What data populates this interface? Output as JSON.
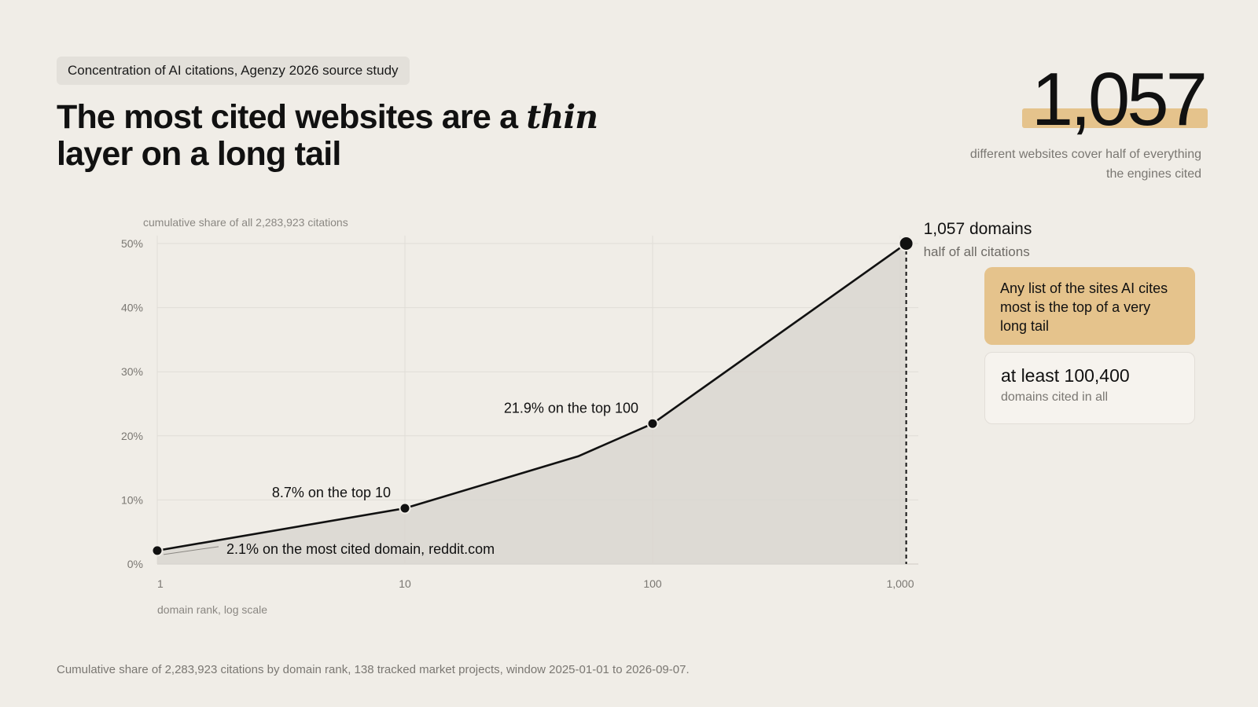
{
  "tag": "Concentration of AI citations, Agenzy 2026 source study",
  "headline": {
    "before": "The most cited websites are a ",
    "em": "thin",
    "after": " layer on a long tail"
  },
  "hero": {
    "number": "1,057",
    "subtitle_line1": "different websites cover half of everything",
    "subtitle_line2": "the engines cited"
  },
  "callout_accent": "Any list of the sites AI cites most is the top of a very long tail",
  "callout_plain": {
    "value": "at least 100,400",
    "label": "domains cited in all"
  },
  "footer": "Cumulative share of 2,283,923 citations by domain rank, 138 tracked market projects, window 2025-01-01 to 2026-09-07.",
  "colors": {
    "background": "#f0ede7",
    "accent": "#e5c38c",
    "line": "#111111",
    "area": "#d9d6d0"
  },
  "chart_data": {
    "type": "area",
    "title": "",
    "ylabel": "cumulative share of all 2,283,923 citations",
    "xlabel": "domain rank, log scale",
    "x_scale": "log",
    "xlim": [
      1,
      1000
    ],
    "ylim": [
      0,
      50
    ],
    "x_ticks": [
      1,
      10,
      100,
      1000
    ],
    "x_tick_labels": [
      "1",
      "10",
      "100",
      "1,000"
    ],
    "y_ticks": [
      0,
      10,
      20,
      30,
      40,
      50
    ],
    "y_tick_labels": [
      "0%",
      "10%",
      "20%",
      "30%",
      "40%",
      "50%"
    ],
    "grid": true,
    "series": [
      {
        "x": [
          1,
          10,
          50,
          100,
          1057
        ],
        "y": [
          2.1,
          8.7,
          16.8,
          21.9,
          50
        ]
      }
    ],
    "highlight_points": [
      {
        "x": 1,
        "y": 2.1,
        "label": "2.1% on the most cited domain, reddit.com"
      },
      {
        "x": 10,
        "y": 8.7,
        "label": "8.7% on the top 10"
      },
      {
        "x": 100,
        "y": 21.9,
        "label": "21.9% on the top 100"
      },
      {
        "x": 1057,
        "y": 50,
        "label": "1,057 domains",
        "sublabel": "half of all citations"
      }
    ]
  }
}
